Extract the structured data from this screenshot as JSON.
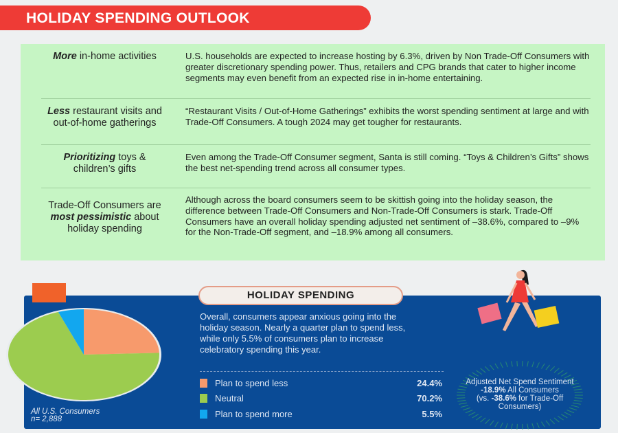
{
  "header": {
    "title": "HOLIDAY SPENDING OUTLOOK"
  },
  "insights": [
    {
      "label_bold": "More",
      "label_rest": " in-home activities",
      "text": "U.S. households are expected to increase hosting by 6.3%, driven by Non Trade-Off Consumers with greater discretionary spending power. Thus, retailers and CPG brands that cater to higher income segments may even benefit from an expected rise in in-home entertaining."
    },
    {
      "label_bold": "Less",
      "label_rest": " restaurant visits and out-of-home gatherings",
      "text": "“Restaurant Visits / Out-of-Home Gatherings” exhibits the worst spending sentiment at large and with Trade-Off Consumers. A tough 2024 may get tougher for restaurants."
    },
    {
      "label_bold": "Prioritizing",
      "label_rest": " toys & children’s gifts",
      "text": "Even among the Trade-Off Consumer segment, Santa is still coming. “Toys & Children’s Gifts” shows the best net-spending trend across all consumer types."
    },
    {
      "label_pre": "Trade-Off Consumers are ",
      "label_bold": "most pessimistic",
      "label_rest": " about holiday spending",
      "text": "Although across the board consumers seem to be skittish going into the holiday season, the difference between Trade-Off Consumers and Non-Trade-Off Consumers is stark. Trade-Off Consumers have an overall holiday spending adjusted net sentiment of –38.6%, compared to –9% for the Non-Trade-Off segment, and –18.9% among all consumers."
    }
  ],
  "spending": {
    "title": "HOLIDAY SPENDING",
    "description": "Overall, consumers appear anxious going into the holiday season. Nearly a quarter plan to spend less, while only 5.5% of consumers plan to increase celebratory spending this year.",
    "caption_line1": "All U.S. Consumers",
    "caption_line2": "n= 2,888",
    "sentiment": {
      "line1": "Adjusted Net Spend Sentiment",
      "line2_bold": "-18.9%",
      "line2_rest": " All Consumers",
      "line3_pre": "(vs. ",
      "line3_bold": "-38.6%",
      "line3_rest": " for Trade-Off Consumers)"
    }
  },
  "chart_data": {
    "type": "pie",
    "categories": [
      "Plan to spend less",
      "Neutral",
      "Plan to spend more"
    ],
    "values": [
      24.4,
      70.2,
      5.5
    ],
    "value_labels": [
      "24.4%",
      "70.2%",
      "5.5%"
    ],
    "colors": [
      "#f79a6c",
      "#9ccc4f",
      "#12a7ef"
    ]
  }
}
